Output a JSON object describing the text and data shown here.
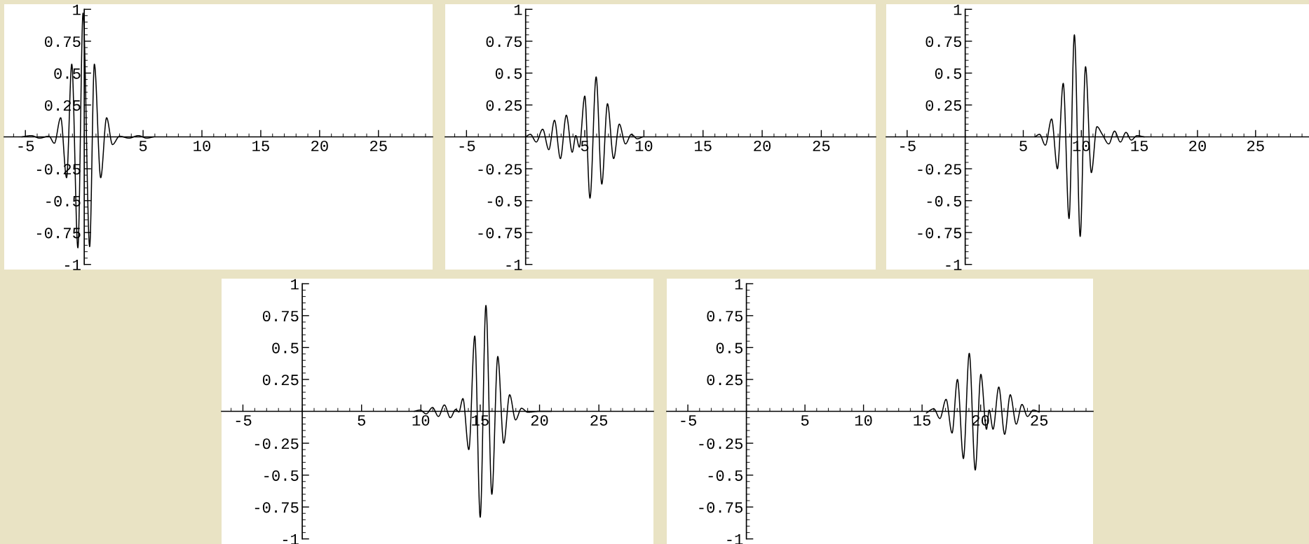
{
  "chart_data": [
    {
      "type": "line",
      "xlim": [
        -6.8,
        29.6
      ],
      "ylim": [
        -1.04,
        1.04
      ],
      "xticks": [
        -5,
        5,
        10,
        15,
        20,
        25
      ],
      "yticks": [
        -1,
        -0.75,
        -0.5,
        -0.25,
        0.25,
        0.5,
        0.75,
        1
      ],
      "series": [
        {
          "color": "#000000",
          "x": [
            -5.3,
            -4.5,
            -3.8,
            -3.0,
            -2.54,
            -2.0,
            -1.5,
            -1.06,
            -0.54,
            -0.1,
            0.46,
            0.86,
            1.4,
            1.9,
            2.4,
            3.0,
            3.8,
            4.6,
            5.3,
            5.9
          ],
          "values": [
            0,
            0.01,
            -0.01,
            0.005,
            -0.05,
            0.15,
            -0.32,
            0.57,
            -0.87,
            0.97,
            -0.86,
            0.57,
            -0.32,
            0.15,
            -0.06,
            0.005,
            -0.01,
            0.01,
            -0.01,
            0
          ]
        }
      ]
    },
    {
      "type": "line",
      "xlim": [
        -6.8,
        29.6
      ],
      "ylim": [
        -1.04,
        1.04
      ],
      "xticks": [
        -5,
        5,
        10,
        15,
        20,
        25
      ],
      "yticks": [
        -1,
        -0.75,
        -0.5,
        -0.25,
        0.25,
        0.5,
        0.75,
        1
      ],
      "series": [
        {
          "color": "#000000",
          "x": [
            0,
            0.4,
            0.9,
            1.44,
            1.96,
            2.44,
            2.94,
            3.44,
            3.94,
            4.24,
            4.54,
            5.0,
            5.44,
            5.96,
            6.44,
            6.92,
            7.44,
            7.92,
            8.44,
            8.94,
            9.44,
            9.9
          ],
          "values": [
            0,
            0.02,
            -0.04,
            0.06,
            -0.1,
            0.13,
            -0.17,
            0.17,
            -0.12,
            0.01,
            -0.08,
            0.32,
            -0.48,
            0.47,
            -0.37,
            0.26,
            -0.17,
            0.1,
            -0.055,
            0.02,
            -0.015,
            0
          ]
        }
      ]
    },
    {
      "type": "line",
      "xlim": [
        -6.8,
        29.6
      ],
      "ylim": [
        -1.04,
        1.04
      ],
      "xticks": [
        -5,
        5,
        10,
        15,
        20,
        25
      ],
      "yticks": [
        -1,
        -0.75,
        -0.5,
        -0.25,
        0.25,
        0.5,
        0.75,
        1
      ],
      "series": [
        {
          "color": "#000000",
          "x": [
            6.0,
            6.4,
            6.9,
            7.44,
            7.94,
            8.44,
            8.94,
            9.4,
            9.9,
            10.36,
            10.86,
            11.34,
            11.8,
            12.36,
            12.86,
            13.36,
            13.84,
            14.3,
            14.8,
            15.4
          ],
          "values": [
            0,
            0.02,
            -0.065,
            0.14,
            -0.25,
            0.42,
            -0.64,
            0.8,
            -0.78,
            0.55,
            -0.28,
            0.08,
            0.02,
            -0.055,
            0.045,
            -0.04,
            0.035,
            -0.025,
            0.01,
            0
          ]
        }
      ]
    },
    {
      "type": "line",
      "xlim": [
        -6.8,
        29.6
      ],
      "ylim": [
        -1.04,
        1.04
      ],
      "xticks": [
        -5,
        5,
        10,
        15,
        20,
        25
      ],
      "yticks": [
        -1,
        -0.75,
        -0.5,
        -0.25,
        0.25,
        0.5,
        0.75,
        1
      ],
      "series": [
        {
          "color": "#000000",
          "x": [
            9.44,
            9.94,
            10.44,
            10.98,
            11.48,
            11.98,
            12.48,
            12.94,
            13.2,
            13.54,
            14.04,
            14.54,
            15.0,
            15.48,
            15.98,
            16.48,
            16.98,
            17.48,
            17.98,
            18.48,
            19.0,
            20.0,
            21.0
          ],
          "values": [
            0,
            0.01,
            -0.02,
            0.03,
            -0.04,
            0.05,
            -0.05,
            0.015,
            -0.005,
            0.1,
            -0.3,
            0.59,
            -0.83,
            0.83,
            -0.65,
            0.43,
            -0.25,
            0.13,
            -0.067,
            0.024,
            -0.007,
            0,
            0
          ]
        }
      ]
    },
    {
      "type": "line",
      "xlim": [
        -6.8,
        29.6
      ],
      "ylim": [
        -1.04,
        1.04
      ],
      "xticks": [
        -5,
        5,
        10,
        15,
        20,
        25
      ],
      "yticks": [
        -1,
        -0.75,
        -0.5,
        -0.25,
        0.25,
        0.5,
        0.75,
        1
      ],
      "series": [
        {
          "color": "#000000",
          "x": [
            15.37,
            16.0,
            16.52,
            17.05,
            17.56,
            18.02,
            18.53,
            19.03,
            19.54,
            20.02,
            20.5,
            20.73,
            21.06,
            21.55,
            22.05,
            22.53,
            23.04,
            23.53,
            24.0,
            24.5,
            25.0
          ],
          "values": [
            -0.013,
            0.02,
            -0.056,
            0.094,
            -0.17,
            0.25,
            -0.37,
            0.455,
            -0.46,
            0.29,
            -0.14,
            0.01,
            -0.14,
            0.19,
            -0.18,
            0.13,
            -0.1,
            0.054,
            -0.04,
            0.01,
            -0.006
          ]
        }
      ]
    }
  ]
}
